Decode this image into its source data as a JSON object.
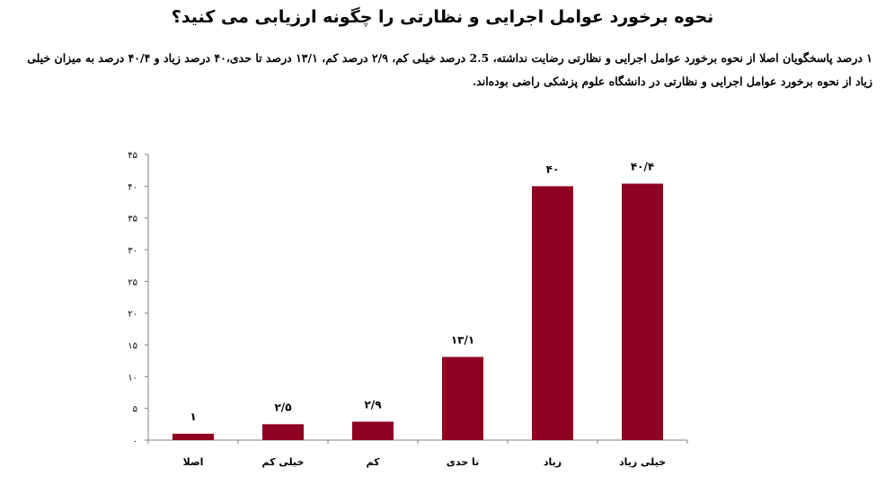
{
  "page": {
    "title": "نحوه برخورد عوامل اجرایی و نظارتی را چگونه ارزیابی می کنید؟",
    "description": "۱ درصد پاسخگویان اصلا از نحوه برخورد عوامل اجرایی و نظارتی رضایت نداشته، 2.5 درصد خیلی کم، ۲/۹ درصد کم، ۱۳/۱ درصد تا حدی،۴۰ درصد زیاد و ۴۰/۴ درصد به میزان خیلی زیاد از نحوه برخورد عوامل اجرایی و نظارتی در دانشگاه علوم پزشکی راضی بوده‌اند."
  },
  "chart_data": {
    "type": "bar",
    "categories": [
      "اصلا",
      "خیلی کم",
      "کم",
      "تا حدی",
      "زیاد",
      "خیلی زیاد"
    ],
    "values": [
      1,
      2.5,
      2.9,
      13.1,
      40,
      40.4
    ],
    "data_labels": [
      "۱",
      "۲/۵",
      "۲/۹",
      "۱۳/۱",
      "۴۰",
      "۴۰/۴"
    ],
    "yticks": [
      0,
      5,
      10,
      15,
      20,
      25,
      30,
      35,
      40,
      45
    ],
    "ytick_labels": [
      "۰",
      "۵",
      "۱۰",
      "۱۵",
      "۲۰",
      "۲۵",
      "۳۰",
      "۳۵",
      "۴۰",
      "۴۵"
    ],
    "ylim": [
      0,
      45
    ],
    "grid": false,
    "bar_color": "#900020",
    "axis_color": "#808080"
  }
}
